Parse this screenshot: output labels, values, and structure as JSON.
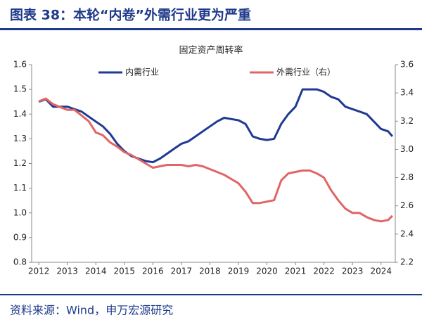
{
  "header": {
    "title": "图表 38：本轮“内卷”外需行业更为严重"
  },
  "chart_data": {
    "type": "line",
    "title": "固定资产周转率",
    "x": [
      2012,
      2012.25,
      2012.5,
      2012.75,
      2013,
      2013.25,
      2013.5,
      2013.75,
      2014,
      2014.25,
      2014.5,
      2014.75,
      2015,
      2015.25,
      2015.5,
      2015.75,
      2016,
      2016.25,
      2016.5,
      2016.75,
      2017,
      2017.25,
      2017.5,
      2017.75,
      2018,
      2018.25,
      2018.5,
      2018.75,
      2019,
      2019.25,
      2019.5,
      2019.75,
      2020,
      2020.25,
      2020.5,
      2020.75,
      2021,
      2021.25,
      2021.5,
      2021.75,
      2022,
      2022.25,
      2022.5,
      2022.75,
      2023,
      2023.25,
      2023.5,
      2023.75,
      2024,
      2024.25,
      2024.4
    ],
    "series": [
      {
        "name": "内需行业",
        "color": "#1f3a93",
        "axis": "y",
        "values": [
          1.45,
          1.46,
          1.43,
          1.43,
          1.43,
          1.42,
          1.41,
          1.39,
          1.37,
          1.35,
          1.32,
          1.28,
          1.25,
          1.23,
          1.22,
          1.21,
          1.205,
          1.22,
          1.24,
          1.26,
          1.28,
          1.29,
          1.31,
          1.33,
          1.35,
          1.37,
          1.385,
          1.38,
          1.375,
          1.36,
          1.31,
          1.3,
          1.295,
          1.3,
          1.36,
          1.4,
          1.43,
          1.5,
          1.5,
          1.5,
          1.49,
          1.47,
          1.46,
          1.43,
          1.42,
          1.41,
          1.4,
          1.37,
          1.34,
          1.33,
          1.31
        ]
      },
      {
        "name": "外需行业（右）",
        "color": "#e06666",
        "axis": "y2",
        "values": [
          3.34,
          3.36,
          3.32,
          3.3,
          3.28,
          3.28,
          3.24,
          3.2,
          3.12,
          3.1,
          3.05,
          3.02,
          2.98,
          2.96,
          2.93,
          2.9,
          2.87,
          2.88,
          2.89,
          2.89,
          2.89,
          2.88,
          2.89,
          2.88,
          2.86,
          2.84,
          2.82,
          2.79,
          2.76,
          2.7,
          2.62,
          2.62,
          2.63,
          2.64,
          2.78,
          2.83,
          2.84,
          2.85,
          2.85,
          2.83,
          2.8,
          2.71,
          2.64,
          2.58,
          2.55,
          2.55,
          2.52,
          2.5,
          2.49,
          2.5,
          2.53
        ]
      }
    ],
    "xlim": [
      2011.75,
      2024.5
    ],
    "xticks": [
      2012,
      2013,
      2014,
      2015,
      2016,
      2017,
      2018,
      2019,
      2020,
      2021,
      2022,
      2023,
      2024
    ],
    "ylim": [
      0.8,
      1.6
    ],
    "yticks": [
      0.8,
      0.9,
      {
        "value": 1,
        "label": "1.0"
      },
      1.1,
      1.2,
      1.3,
      1.4,
      1.5,
      1.6
    ],
    "y2lim": [
      2.2,
      3.6
    ],
    "y2ticks": [
      2.2,
      2.4,
      2.6,
      2.8,
      {
        "value": 3,
        "label": "3.0"
      },
      3.2,
      3.4,
      3.6
    ],
    "legend": "top"
  },
  "footer": {
    "source": "资料来源：Wind，申万宏源研究"
  }
}
